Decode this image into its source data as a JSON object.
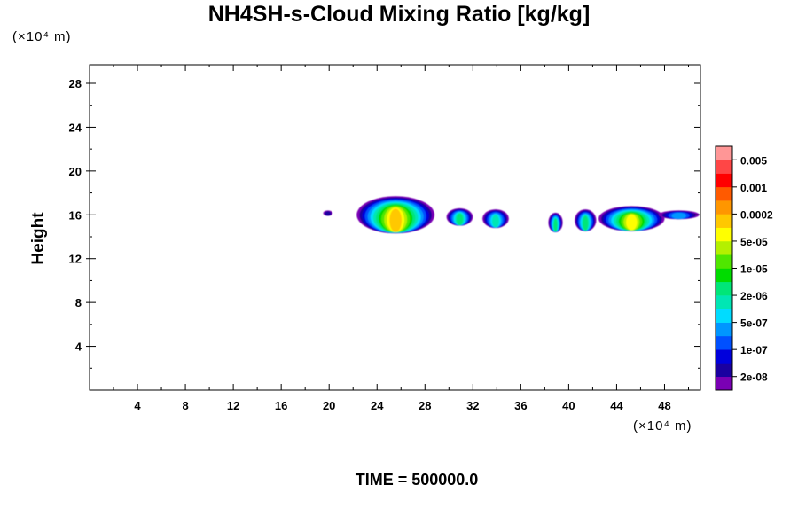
{
  "chart_data": {
    "type": "heatmap",
    "title": "NH4SH-s-Cloud Mixing Ratio [kg/kg]",
    "ylabel": "Height",
    "x_unit": "(×10⁴ m)",
    "y_unit": "(×10⁴ m)",
    "footer": "TIME = 500000.0",
    "xlim": [
      0,
      51
    ],
    "ylim": [
      0,
      29.7
    ],
    "x_ticks": [
      4,
      8,
      12,
      16,
      20,
      24,
      28,
      32,
      36,
      40,
      44,
      48
    ],
    "y_ticks": [
      4,
      8,
      12,
      16,
      20,
      24,
      28
    ],
    "x_minor_step": 2,
    "y_minor_step": 2,
    "colorbar": {
      "colors": [
        "#7a00b4",
        "#1a00a0",
        "#0000dc",
        "#0050ff",
        "#0096ff",
        "#00dcff",
        "#00e6b4",
        "#00e678",
        "#00dc00",
        "#50e600",
        "#b4f000",
        "#ffff00",
        "#ffc800",
        "#ff9600",
        "#ff5a00",
        "#ff0000",
        "#ff4646",
        "#ff9696"
      ],
      "labels": [
        "2e-08",
        "1e-07",
        "5e-07",
        "2e-06",
        "1e-05",
        "5e-05",
        "0.0002",
        "0.001",
        "0.005"
      ]
    },
    "clouds": [
      {
        "x": [
          19.5,
          20.3
        ],
        "y_bottom": 15.9,
        "y_top": 16.4,
        "peak": 1
      },
      {
        "x": [
          22.3,
          28.8
        ],
        "y_bottom": 14.3,
        "y_top": 17.7,
        "peak": 12
      },
      {
        "x": [
          29.8,
          32.0
        ],
        "y_bottom": 15.0,
        "y_top": 16.6,
        "peak": 7
      },
      {
        "x": [
          32.8,
          35.0
        ],
        "y_bottom": 14.8,
        "y_top": 16.5,
        "peak": 6
      },
      {
        "x": [
          38.3,
          39.5
        ],
        "y_bottom": 14.4,
        "y_top": 16.2,
        "peak": 7
      },
      {
        "x": [
          40.5,
          42.3
        ],
        "y_bottom": 14.5,
        "y_top": 16.5,
        "peak": 7
      },
      {
        "x": [
          42.5,
          48.0
        ],
        "y_bottom": 14.5,
        "y_top": 16.8,
        "peak": 11
      },
      {
        "x": [
          47.5,
          50.9
        ],
        "y_bottom": 15.6,
        "y_top": 16.4,
        "peak": 4
      }
    ]
  }
}
